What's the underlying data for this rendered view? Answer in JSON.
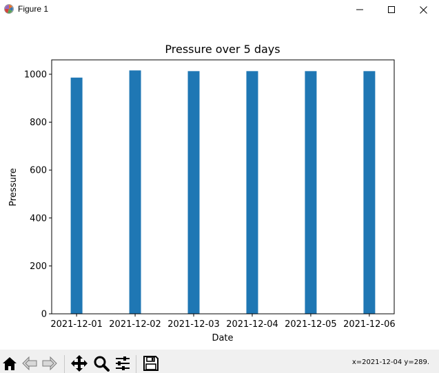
{
  "window": {
    "title": "Figure 1",
    "icon": "matplotlib-logo-icon",
    "controls": [
      "minimize-icon",
      "maximize-icon",
      "close-icon"
    ]
  },
  "toolbar": {
    "items": [
      "home-icon",
      "back-arrow-icon",
      "forward-arrow-icon",
      "pan-icon",
      "zoom-icon",
      "configure-subplots-icon",
      "save-icon"
    ],
    "coordinates": "x=2021-12-04 y=289."
  },
  "chart_data": {
    "type": "bar",
    "title": "Pressure over 5 days",
    "xlabel": "Date",
    "ylabel": "Pressure",
    "categories": [
      "2021-12-01",
      "2021-12-02",
      "2021-12-03",
      "2021-12-04",
      "2021-12-05",
      "2021-12-06"
    ],
    "values": [
      986,
      1016,
      1013,
      1013,
      1013,
      1013
    ],
    "ylim": [
      0,
      1060
    ],
    "yticks": [
      0,
      200,
      400,
      600,
      800,
      1000
    ],
    "bar_color": "#1f77b4",
    "grid": false,
    "legend": "none"
  }
}
